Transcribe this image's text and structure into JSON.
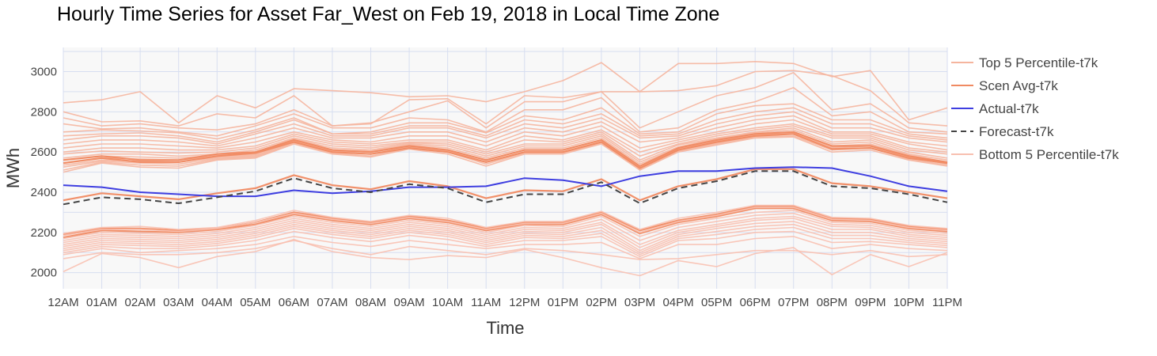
{
  "chart_data": {
    "type": "line",
    "title": "Hourly Time Series for Asset Far_West on Feb 19, 2018 in Local Time Zone",
    "xlabel": "Time",
    "ylabel": "MWh",
    "categories": [
      "12AM",
      "01AM",
      "02AM",
      "03AM",
      "04AM",
      "05AM",
      "06AM",
      "07AM",
      "08AM",
      "09AM",
      "10AM",
      "11AM",
      "12PM",
      "01PM",
      "02PM",
      "03PM",
      "04PM",
      "05PM",
      "06PM",
      "07PM",
      "08PM",
      "09PM",
      "10PM",
      "11PM"
    ],
    "ylim": [
      1920,
      3120
    ],
    "yticks": [
      2000,
      2200,
      2400,
      2600,
      2800,
      3000
    ],
    "grid": true,
    "legend_position": "right",
    "colors": {
      "top5": "#f5b59e",
      "scen_avg": "#f08a62",
      "actual": "#3e3ee0",
      "forecast": "#444444",
      "bottom5": "#f8c0b0",
      "plot_bg": "#f8f8f8",
      "grid": "#d7def0"
    },
    "legend": [
      {
        "key": "top5",
        "label": "Top 5 Percentile-t7k"
      },
      {
        "key": "scen_avg",
        "label": "Scen Avg-t7k"
      },
      {
        "key": "actual",
        "label": "Actual-t7k"
      },
      {
        "key": "forecast",
        "label": "Forecast-t7k"
      },
      {
        "key": "bottom5",
        "label": "Bottom 5 Percentile-t7k"
      }
    ],
    "series": [
      {
        "name": "Top 5 Percentile-t7k",
        "values": [
          2845,
          2860,
          2900,
          2745,
          2880,
          2820,
          2915,
          2905,
          2895,
          2875,
          2880,
          2850,
          2900,
          2955,
          3045,
          2900,
          3040,
          3040,
          3050,
          3040,
          2975,
          3005,
          2760,
          2820
        ]
      },
      {
        "name": "Top 5 Percentile-t7k",
        "values": [
          2800,
          2750,
          2755,
          2730,
          2790,
          2770,
          2880,
          2730,
          2740,
          2860,
          2865,
          2740,
          2880,
          2870,
          2900,
          2900,
          2905,
          2930,
          3000,
          3005,
          2980,
          2905,
          2745,
          2730
        ]
      },
      {
        "name": "Top 5 Percentile-t7k",
        "values": [
          2770,
          2730,
          2740,
          2720,
          2710,
          2740,
          2810,
          2730,
          2745,
          2800,
          2855,
          2720,
          2850,
          2850,
          2900,
          2720,
          2800,
          2880,
          2920,
          2995,
          2810,
          2840,
          2720,
          2700
        ]
      },
      {
        "name": "Top 5 Percentile-t7k",
        "values": [
          2740,
          2715,
          2720,
          2700,
          2680,
          2730,
          2790,
          2720,
          2720,
          2770,
          2760,
          2700,
          2810,
          2810,
          2870,
          2700,
          2720,
          2810,
          2850,
          2920,
          2780,
          2800,
          2700,
          2690
        ]
      },
      {
        "name": "Top 5 Percentile-t7k",
        "values": [
          2700,
          2710,
          2705,
          2695,
          2665,
          2710,
          2770,
          2690,
          2700,
          2745,
          2745,
          2695,
          2780,
          2760,
          2820,
          2690,
          2700,
          2790,
          2830,
          2840,
          2760,
          2760,
          2690,
          2670
        ]
      },
      {
        "name": "Top 5 Percentile-t7k",
        "values": [
          2680,
          2690,
          2695,
          2680,
          2650,
          2700,
          2760,
          2690,
          2690,
          2730,
          2730,
          2680,
          2760,
          2740,
          2790,
          2680,
          2690,
          2760,
          2800,
          2820,
          2740,
          2740,
          2680,
          2660
        ]
      },
      {
        "name": "Top 5 Percentile-t7k",
        "values": [
          2660,
          2680,
          2680,
          2670,
          2640,
          2690,
          2740,
          2680,
          2680,
          2720,
          2720,
          2670,
          2740,
          2720,
          2770,
          2670,
          2680,
          2740,
          2780,
          2800,
          2720,
          2720,
          2670,
          2650
        ]
      },
      {
        "name": "Top 5 Percentile-t7k",
        "values": [
          2640,
          2660,
          2660,
          2650,
          2630,
          2670,
          2720,
          2670,
          2670,
          2700,
          2700,
          2650,
          2720,
          2700,
          2750,
          2650,
          2670,
          2720,
          2760,
          2780,
          2700,
          2700,
          2650,
          2630
        ]
      },
      {
        "name": "Top 5 Percentile-t7k",
        "values": [
          2620,
          2640,
          2640,
          2630,
          2620,
          2650,
          2700,
          2660,
          2650,
          2680,
          2680,
          2630,
          2700,
          2680,
          2730,
          2620,
          2660,
          2700,
          2740,
          2760,
          2690,
          2690,
          2640,
          2610
        ]
      },
      {
        "name": "Top 5 Percentile-t7k",
        "values": [
          2600,
          2620,
          2620,
          2610,
          2610,
          2630,
          2690,
          2650,
          2640,
          2660,
          2660,
          2610,
          2680,
          2660,
          2710,
          2600,
          2650,
          2690,
          2720,
          2740,
          2680,
          2680,
          2620,
          2600
        ]
      },
      {
        "name": "Top 5 Percentile-t7k",
        "values": [
          2590,
          2605,
          2600,
          2595,
          2600,
          2620,
          2680,
          2640,
          2630,
          2650,
          2650,
          2600,
          2660,
          2650,
          2700,
          2580,
          2640,
          2680,
          2710,
          2730,
          2670,
          2670,
          2610,
          2590
        ]
      },
      {
        "name": "Top 5 Percentile-t7k",
        "values": [
          2570,
          2590,
          2590,
          2580,
          2590,
          2610,
          2670,
          2630,
          2620,
          2645,
          2640,
          2590,
          2640,
          2640,
          2690,
          2560,
          2635,
          2670,
          2700,
          2720,
          2650,
          2660,
          2600,
          2570
        ]
      },
      {
        "name": "Top 5 Percentile-t7k",
        "values": [
          2560,
          2580,
          2575,
          2570,
          2585,
          2600,
          2665,
          2620,
          2610,
          2640,
          2630,
          2580,
          2630,
          2630,
          2680,
          2550,
          2625,
          2665,
          2695,
          2710,
          2640,
          2650,
          2590,
          2560
        ]
      },
      {
        "name": "Top 5 Percentile-t7k",
        "values": [
          2545,
          2570,
          2565,
          2560,
          2580,
          2590,
          2660,
          2610,
          2605,
          2635,
          2620,
          2570,
          2620,
          2620,
          2670,
          2540,
          2620,
          2655,
          2690,
          2700,
          2630,
          2640,
          2585,
          2550
        ]
      },
      {
        "name": "Top 5 Percentile-t7k",
        "values": [
          2535,
          2560,
          2555,
          2550,
          2575,
          2585,
          2655,
          2605,
          2600,
          2630,
          2610,
          2560,
          2610,
          2610,
          2660,
          2530,
          2615,
          2650,
          2685,
          2695,
          2625,
          2635,
          2580,
          2545
        ]
      },
      {
        "name": "Top 5 Percentile-t7k",
        "values": [
          2525,
          2555,
          2545,
          2540,
          2570,
          2580,
          2650,
          2600,
          2590,
          2625,
          2605,
          2550,
          2600,
          2600,
          2650,
          2520,
          2610,
          2645,
          2680,
          2690,
          2620,
          2630,
          2575,
          2540
        ]
      },
      {
        "name": "Top 5 Percentile-t7k",
        "values": [
          2510,
          2550,
          2535,
          2530,
          2565,
          2575,
          2645,
          2595,
          2580,
          2620,
          2600,
          2540,
          2595,
          2595,
          2645,
          2515,
          2605,
          2640,
          2675,
          2680,
          2610,
          2620,
          2565,
          2535
        ]
      },
      {
        "name": "Top 5 Percentile-t7k",
        "values": [
          2500,
          2545,
          2525,
          2520,
          2560,
          2570,
          2640,
          2590,
          2575,
          2615,
          2590,
          2530,
          2590,
          2590,
          2640,
          2510,
          2600,
          2635,
          2670,
          2675,
          2600,
          2610,
          2560,
          2530
        ]
      },
      {
        "name": "Scen Avg-t7k",
        "values": [
          2560,
          2580,
          2560,
          2560,
          2590,
          2600,
          2660,
          2610,
          2600,
          2630,
          2610,
          2560,
          2610,
          2610,
          2660,
          2530,
          2620,
          2660,
          2690,
          2700,
          2630,
          2630,
          2580,
          2550
        ]
      },
      {
        "name": "Scen Avg-t7k",
        "values": [
          2545,
          2570,
          2550,
          2550,
          2580,
          2595,
          2650,
          2600,
          2590,
          2620,
          2600,
          2550,
          2600,
          2600,
          2650,
          2520,
          2610,
          2650,
          2680,
          2690,
          2615,
          2620,
          2570,
          2545
        ]
      },
      {
        "name": "Scen Avg-t7k",
        "values": [
          2360,
          2395,
          2380,
          2365,
          2395,
          2420,
          2485,
          2435,
          2415,
          2455,
          2430,
          2370,
          2410,
          2405,
          2465,
          2360,
          2430,
          2465,
          2515,
          2515,
          2445,
          2430,
          2400,
          2370
        ]
      },
      {
        "name": "Scen Avg-t7k",
        "values": [
          2190,
          2220,
          2220,
          2210,
          2220,
          2250,
          2300,
          2270,
          2250,
          2280,
          2260,
          2220,
          2250,
          2250,
          2300,
          2210,
          2260,
          2290,
          2330,
          2330,
          2270,
          2265,
          2230,
          2215
        ]
      },
      {
        "name": "Scen Avg-t7k",
        "values": [
          2175,
          2210,
          2205,
          2200,
          2215,
          2240,
          2290,
          2260,
          2240,
          2270,
          2250,
          2210,
          2240,
          2240,
          2290,
          2195,
          2250,
          2280,
          2320,
          2320,
          2260,
          2255,
          2220,
          2205
        ]
      },
      {
        "name": "Bottom 5 Percentile-t7k",
        "values": [
          2195,
          2225,
          2230,
          2215,
          2225,
          2260,
          2310,
          2275,
          2255,
          2285,
          2270,
          2225,
          2255,
          2255,
          2305,
          2215,
          2270,
          2300,
          2335,
          2335,
          2275,
          2270,
          2235,
          2220
        ]
      },
      {
        "name": "Bottom 5 Percentile-t7k",
        "values": [
          2185,
          2215,
          2215,
          2205,
          2220,
          2250,
          2295,
          2265,
          2245,
          2275,
          2255,
          2215,
          2245,
          2245,
          2295,
          2200,
          2255,
          2285,
          2325,
          2325,
          2265,
          2260,
          2225,
          2210
        ]
      },
      {
        "name": "Bottom 5 Percentile-t7k",
        "values": [
          2170,
          2200,
          2195,
          2190,
          2205,
          2235,
          2280,
          2250,
          2230,
          2260,
          2240,
          2200,
          2235,
          2230,
          2280,
          2180,
          2240,
          2270,
          2300,
          2310,
          2250,
          2245,
          2210,
          2195
        ]
      },
      {
        "name": "Bottom 5 Percentile-t7k",
        "values": [
          2160,
          2190,
          2185,
          2180,
          2195,
          2225,
          2270,
          2240,
          2220,
          2250,
          2230,
          2190,
          2225,
          2220,
          2265,
          2160,
          2225,
          2255,
          2285,
          2295,
          2240,
          2235,
          2200,
          2185
        ]
      },
      {
        "name": "Bottom 5 Percentile-t7k",
        "values": [
          2150,
          2180,
          2175,
          2170,
          2185,
          2215,
          2260,
          2230,
          2210,
          2240,
          2220,
          2180,
          2215,
          2210,
          2250,
          2140,
          2210,
          2240,
          2270,
          2280,
          2230,
          2225,
          2190,
          2175
        ]
      },
      {
        "name": "Bottom 5 Percentile-t7k",
        "values": [
          2140,
          2170,
          2165,
          2160,
          2175,
          2205,
          2250,
          2220,
          2200,
          2230,
          2210,
          2170,
          2205,
          2200,
          2240,
          2125,
          2200,
          2230,
          2260,
          2270,
          2215,
          2215,
          2180,
          2165
        ]
      },
      {
        "name": "Bottom 5 Percentile-t7k",
        "values": [
          2130,
          2160,
          2155,
          2150,
          2165,
          2195,
          2240,
          2210,
          2190,
          2220,
          2200,
          2160,
          2195,
          2190,
          2225,
          2110,
          2190,
          2220,
          2245,
          2255,
          2200,
          2200,
          2170,
          2155
        ]
      },
      {
        "name": "Bottom 5 Percentile-t7k",
        "values": [
          2120,
          2150,
          2145,
          2140,
          2155,
          2185,
          2230,
          2200,
          2180,
          2210,
          2190,
          2150,
          2185,
          2180,
          2210,
          2100,
          2180,
          2205,
          2230,
          2240,
          2185,
          2185,
          2160,
          2145
        ]
      },
      {
        "name": "Bottom 5 Percentile-t7k",
        "values": [
          2110,
          2140,
          2135,
          2130,
          2145,
          2175,
          2220,
          2190,
          2170,
          2200,
          2180,
          2140,
          2175,
          2170,
          2195,
          2090,
          2170,
          2190,
          2215,
          2225,
          2170,
          2170,
          2150,
          2135
        ]
      },
      {
        "name": "Bottom 5 Percentile-t7k",
        "values": [
          2100,
          2130,
          2120,
          2120,
          2135,
          2160,
          2205,
          2175,
          2155,
          2185,
          2165,
          2130,
          2160,
          2160,
          2180,
          2080,
          2160,
          2170,
          2200,
          2205,
          2150,
          2155,
          2140,
          2125
        ]
      },
      {
        "name": "Bottom 5 Percentile-t7k",
        "values": [
          2090,
          2120,
          2100,
          2110,
          2120,
          2140,
          2180,
          2150,
          2130,
          2160,
          2140,
          2120,
          2140,
          2140,
          2150,
          2070,
          2140,
          2140,
          2170,
          2180,
          2120,
          2140,
          2120,
          2110
        ]
      },
      {
        "name": "Bottom 5 Percentile-t7k",
        "values": [
          2070,
          2100,
          2090,
          2090,
          2100,
          2120,
          2160,
          2120,
          2090,
          2130,
          2110,
          2090,
          2120,
          2110,
          2090,
          2065,
          2070,
          2090,
          2110,
          2110,
          2090,
          2110,
          2080,
          2090
        ]
      },
      {
        "name": "Bottom 5 Percentile-t7k",
        "values": [
          2005,
          2095,
          2075,
          2025,
          2080,
          2105,
          2165,
          2105,
          2075,
          2065,
          2085,
          2075,
          2115,
          2075,
          2025,
          1985,
          2060,
          2030,
          2095,
          2125,
          1990,
          2090,
          2030,
          2100
        ]
      },
      {
        "name": "Actual-t7k",
        "values": [
          2435,
          2425,
          2400,
          2390,
          2380,
          2380,
          2410,
          2395,
          2405,
          2425,
          2425,
          2430,
          2470,
          2460,
          2430,
          2480,
          2505,
          2505,
          2520,
          2525,
          2520,
          2480,
          2430,
          2405
        ]
      },
      {
        "name": "Forecast-t7k",
        "values": [
          2340,
          2375,
          2365,
          2345,
          2375,
          2405,
          2470,
          2420,
          2400,
          2440,
          2420,
          2350,
          2390,
          2390,
          2450,
          2345,
          2420,
          2455,
          2505,
          2505,
          2430,
          2420,
          2390,
          2350
        ]
      }
    ]
  }
}
